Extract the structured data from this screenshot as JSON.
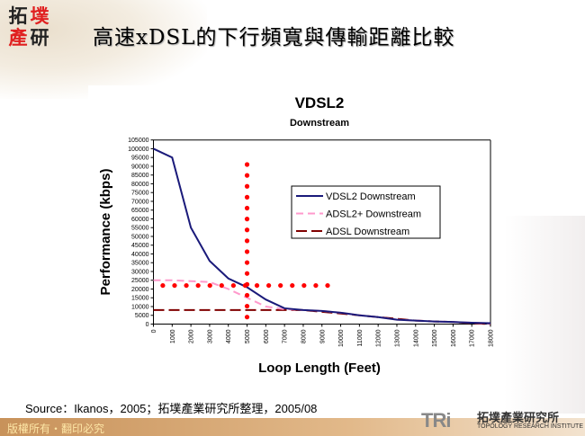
{
  "slide": {
    "title": "高速xDSL的下行頻寬與傳輸距離比較",
    "logo_chars": [
      "拓",
      "墣",
      "產",
      "研"
    ],
    "source": "Source：Ikanos，2005；拓墣產業研究所整理，2005/08",
    "footer": "版權所有‧翻印必究",
    "brand_short": "TRi",
    "brand_cn": "拓墣產業研究所",
    "brand_en": "TOPOLOGY RESEARCH INSTITUTE"
  },
  "chart_data": {
    "type": "line",
    "title": "VDSL2",
    "subtitle": "Downstream",
    "xlabel": "Loop Length (Feet)",
    "ylabel": "Performance (kbps)",
    "xlim": [
      0,
      18000
    ],
    "ylim": [
      0,
      105000
    ],
    "x_ticks": [
      "0",
      "1000",
      "2000",
      "3000",
      "4000",
      "5000",
      "6000",
      "7000",
      "8000",
      "9000",
      "10000",
      "11000",
      "12000",
      "13000",
      "14000",
      "15000",
      "16000",
      "17000",
      "18000"
    ],
    "y_ticks": [
      "0",
      "5000",
      "10000",
      "15000",
      "20000",
      "25000",
      "30000",
      "35000",
      "40000",
      "45000",
      "50000",
      "55000",
      "60000",
      "65000",
      "70000",
      "75000",
      "80000",
      "85000",
      "90000",
      "95000",
      "100000",
      "105000"
    ],
    "grid": false,
    "legend_position": "right-center",
    "x": [
      0,
      1000,
      2000,
      3000,
      4000,
      5000,
      6000,
      7000,
      8000,
      9000,
      10000,
      11000,
      12000,
      13000,
      14000,
      15000,
      16000,
      17000,
      18000
    ],
    "series": [
      {
        "name": "VDSL2 Downstream",
        "color": "#1a1a7a",
        "style": "solid",
        "values": [
          100000,
          95000,
          55000,
          36000,
          26000,
          21000,
          14000,
          9000,
          8000,
          7500,
          6500,
          5000,
          4000,
          2500,
          2000,
          1500,
          1200,
          800,
          500
        ]
      },
      {
        "name": "ADSL2+ Downstream",
        "color": "#ff99cc",
        "style": "dash",
        "values": [
          25000,
          25000,
          24500,
          24000,
          20000,
          15000,
          10000,
          8500,
          8000,
          7500,
          6500,
          5000,
          4000,
          2500,
          2000,
          1500,
          1200,
          800,
          300
        ]
      },
      {
        "name": "ADSL Downstream",
        "color": "#800000",
        "style": "longdash",
        "values": [
          8000,
          8000,
          8000,
          8000,
          8000,
          8000,
          8000,
          8000,
          8000,
          7000,
          6000,
          5000,
          4000,
          3000,
          2000,
          1500,
          1200,
          500,
          0
        ]
      }
    ],
    "annotations": [
      {
        "type": "dotted-vertical",
        "color": "#ff0000",
        "x": 5000,
        "y_range": [
          4000,
          91000
        ]
      },
      {
        "type": "dotted-horizontal",
        "color": "#ff0000",
        "y": 22000,
        "x_range": [
          500,
          9300
        ]
      }
    ]
  }
}
